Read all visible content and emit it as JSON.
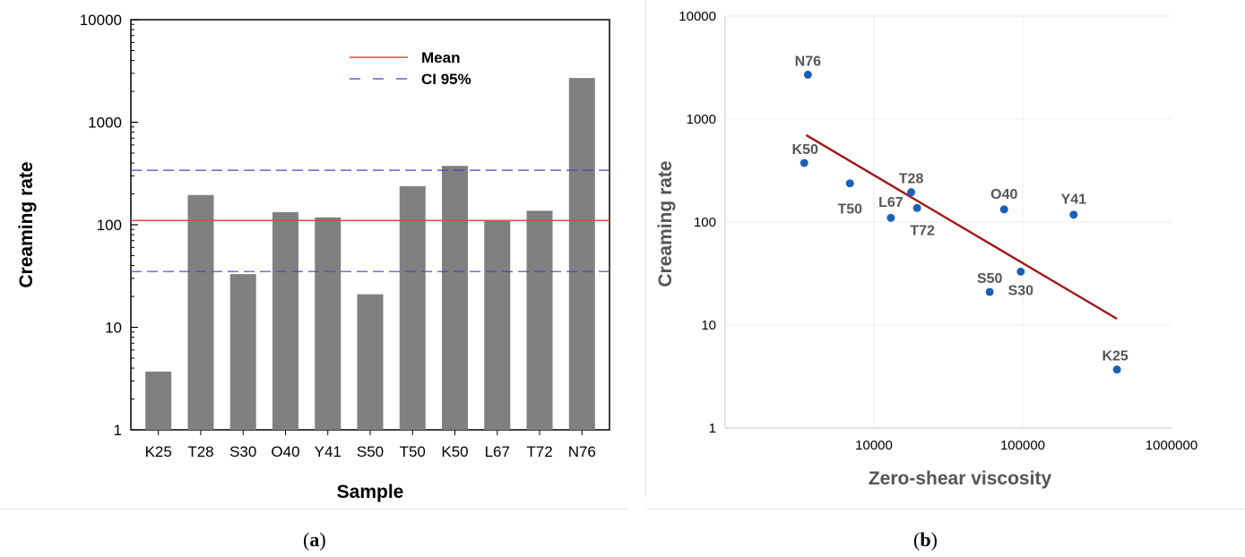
{
  "chart_data": [
    {
      "panel": "a",
      "type": "bar",
      "xlabel": "Sample",
      "ylabel": "Creaming rate",
      "yscale": "log",
      "ylim": [
        1,
        10000
      ],
      "yticks": [
        "1",
        "10",
        "100",
        "1000",
        "10000"
      ],
      "categories": [
        "K25",
        "T28",
        "S30",
        "O40",
        "Y41",
        "S50",
        "T50",
        "K50",
        "L67",
        "T72",
        "N76"
      ],
      "values": [
        3.7,
        195,
        33,
        133,
        118,
        21,
        238,
        375,
        110,
        137,
        2700
      ],
      "reference_lines": [
        {
          "name": "Mean",
          "value": 110,
          "color": "#e8443a",
          "style": "solid"
        },
        {
          "name": "CI 95%",
          "values": [
            35,
            340
          ],
          "color": "#4444bb",
          "style": "dashed"
        }
      ],
      "legend_placement": "top-right",
      "bar_color": "#808080"
    },
    {
      "panel": "b",
      "type": "scatter",
      "xlabel": "Zero-shear viscosity",
      "ylabel": "Creaming rate",
      "xscale": "log",
      "yscale": "log",
      "xlim": [
        1000,
        1000000
      ],
      "ylim": [
        1,
        10000
      ],
      "xticks": [
        "10000",
        "100000",
        "1000000"
      ],
      "yticks": [
        "1",
        "10",
        "100",
        "1000",
        "10000"
      ],
      "grid": true,
      "points": [
        {
          "label": "N76",
          "x": 3600,
          "y": 2700
        },
        {
          "label": "K50",
          "x": 3400,
          "y": 375
        },
        {
          "label": "T50",
          "x": 6900,
          "y": 238
        },
        {
          "label": "T28",
          "x": 17800,
          "y": 195
        },
        {
          "label": "L67",
          "x": 13000,
          "y": 110
        },
        {
          "label": "T72",
          "x": 19500,
          "y": 137
        },
        {
          "label": "O40",
          "x": 75000,
          "y": 133
        },
        {
          "label": "Y41",
          "x": 220000,
          "y": 118
        },
        {
          "label": "S50",
          "x": 60000,
          "y": 21
        },
        {
          "label": "S30",
          "x": 97000,
          "y": 33
        },
        {
          "label": "K25",
          "x": 430000,
          "y": 3.7
        }
      ],
      "trendline": {
        "x": [
          3500,
          430000
        ],
        "y": [
          700,
          11.5
        ],
        "color": "#a01818"
      },
      "point_color": "#1a5fb4"
    }
  ],
  "captions": {
    "a": {
      "open": "(",
      "letter": "a",
      "close": ")"
    },
    "b": {
      "open": "(",
      "letter": "b",
      "close": ")"
    }
  }
}
